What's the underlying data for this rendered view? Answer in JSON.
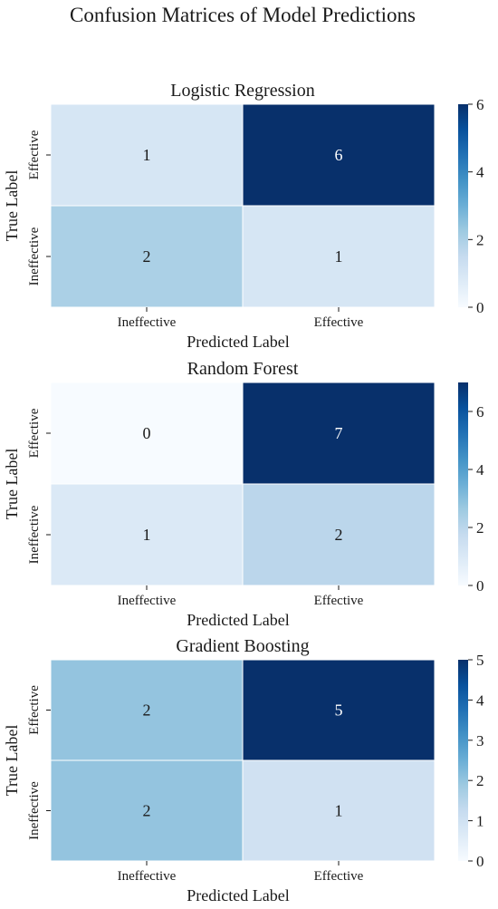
{
  "figure": {
    "title": "Confusion Matrices of Model Predictions"
  },
  "chart_data": [
    {
      "type": "heatmap",
      "title": "Logistic Regression",
      "xlabel": "Predicted Label",
      "ylabel": "True Label",
      "x_categories": [
        "Ineffective",
        "Effective"
      ],
      "y_categories": [
        "Effective",
        "Ineffective"
      ],
      "values": [
        [
          1,
          6
        ],
        [
          2,
          1
        ]
      ],
      "colorbar": {
        "vmin": 0,
        "vmax": 6,
        "ticks": [
          0,
          2,
          4,
          6
        ]
      },
      "colormap": "Blues"
    },
    {
      "type": "heatmap",
      "title": "Random Forest",
      "xlabel": "Predicted Label",
      "ylabel": "True Label",
      "x_categories": [
        "Ineffective",
        "Effective"
      ],
      "y_categories": [
        "Effective",
        "Ineffective"
      ],
      "values": [
        [
          0,
          7
        ],
        [
          1,
          2
        ]
      ],
      "colorbar": {
        "vmin": 0,
        "vmax": 7,
        "ticks": [
          0,
          2,
          4,
          6
        ]
      },
      "colormap": "Blues"
    },
    {
      "type": "heatmap",
      "title": "Gradient Boosting",
      "xlabel": "Predicted Label",
      "ylabel": "True Label",
      "x_categories": [
        "Ineffective",
        "Effective"
      ],
      "y_categories": [
        "Effective",
        "Ineffective"
      ],
      "values": [
        [
          2,
          5
        ],
        [
          2,
          1
        ]
      ],
      "colorbar": {
        "vmin": 0,
        "vmax": 5,
        "ticks": [
          0,
          1,
          2,
          3,
          4,
          5
        ]
      },
      "colormap": "Blues"
    }
  ],
  "colors": {
    "cmap_stops": [
      "#f7fbff",
      "#deebf7",
      "#c6dbef",
      "#9ecae1",
      "#6baed6",
      "#4292c6",
      "#2171b5",
      "#08519c",
      "#08306b"
    ],
    "text": "#1a1a1a",
    "grid_line": "#ffffff"
  }
}
